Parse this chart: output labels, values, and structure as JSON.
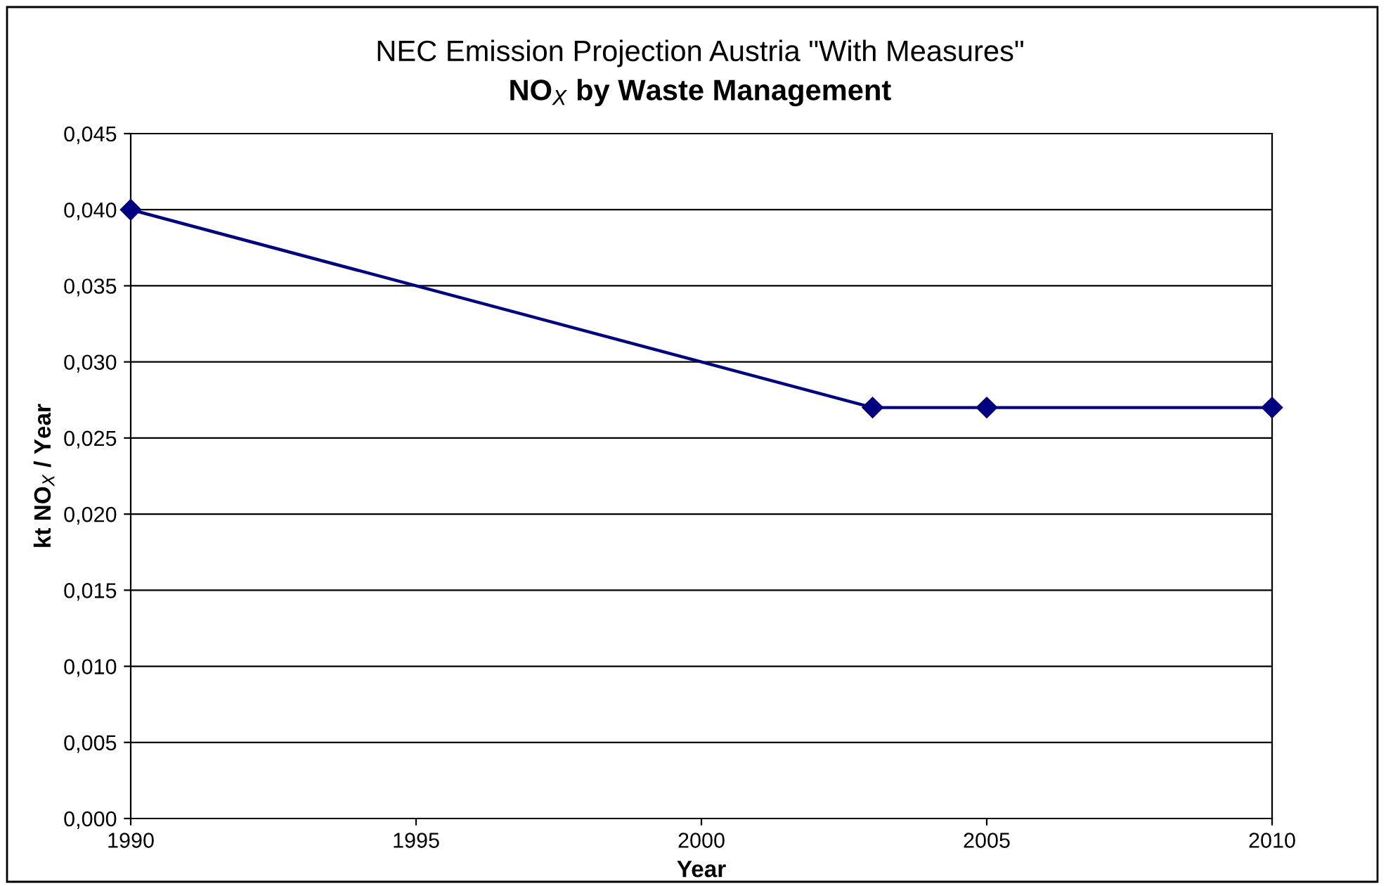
{
  "chart_data": {
    "type": "line",
    "title": "NEC Emission Projection Austria \"With Measures\"",
    "subtitle": "NO$_{X}$ by Waste Management",
    "xlabel": "Year",
    "ylabel": "kt NO$_{X}$ / Year",
    "x": [
      1990,
      2003,
      2005,
      2010
    ],
    "series": [
      {
        "color": "#000080",
        "values": [
          0.04,
          0.027,
          0.027,
          0.027
        ]
      }
    ],
    "xlim": [
      1990,
      2010
    ],
    "xticks": [
      1990,
      1995,
      2000,
      2005,
      2010
    ],
    "ylim": [
      0,
      0.045
    ],
    "yticks": [
      {
        "value": 0,
        "label": "0,000"
      },
      {
        "value": 0.005,
        "label": "0,005"
      },
      {
        "value": 0.01,
        "label": "0,010"
      },
      {
        "value": 0.015,
        "label": "0,015"
      },
      {
        "value": 0.02,
        "label": "0,020"
      },
      {
        "value": 0.025,
        "label": "0,025"
      },
      {
        "value": 0.03,
        "label": "0,030"
      },
      {
        "value": 0.035,
        "label": "0,035"
      },
      {
        "value": 0.04,
        "label": "0,040"
      },
      {
        "value": 0.045,
        "label": "0,045"
      }
    ],
    "grid": "y",
    "marker": "diamond",
    "line_style": "solid",
    "legend": false
  }
}
